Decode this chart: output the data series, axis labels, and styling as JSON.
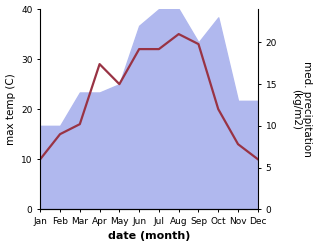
{
  "months": [
    "Jan",
    "Feb",
    "Mar",
    "Apr",
    "May",
    "Jun",
    "Jul",
    "Aug",
    "Sep",
    "Oct",
    "Nov",
    "Dec"
  ],
  "temp": [
    10,
    15,
    17,
    29,
    25,
    32,
    32,
    35,
    33,
    20,
    13,
    10
  ],
  "precip": [
    10,
    10,
    14,
    14,
    15,
    22,
    24,
    24,
    20,
    23,
    13,
    13
  ],
  "temp_ylim": [
    0,
    40
  ],
  "precip_ylim": [
    0,
    24
  ],
  "ylabel_left": "max temp (C)",
  "ylabel_right": "med. precipitation\n(kg/m2)",
  "xlabel": "date (month)",
  "fill_color": "#b0b8ee",
  "line_color": "#993344",
  "line_width": 1.6,
  "right_yticks": [
    0,
    5,
    10,
    15,
    20
  ],
  "left_yticks": [
    0,
    10,
    20,
    30,
    40
  ],
  "tick_fontsize": 6.5,
  "label_fontsize": 7.5,
  "xlabel_fontsize": 8
}
